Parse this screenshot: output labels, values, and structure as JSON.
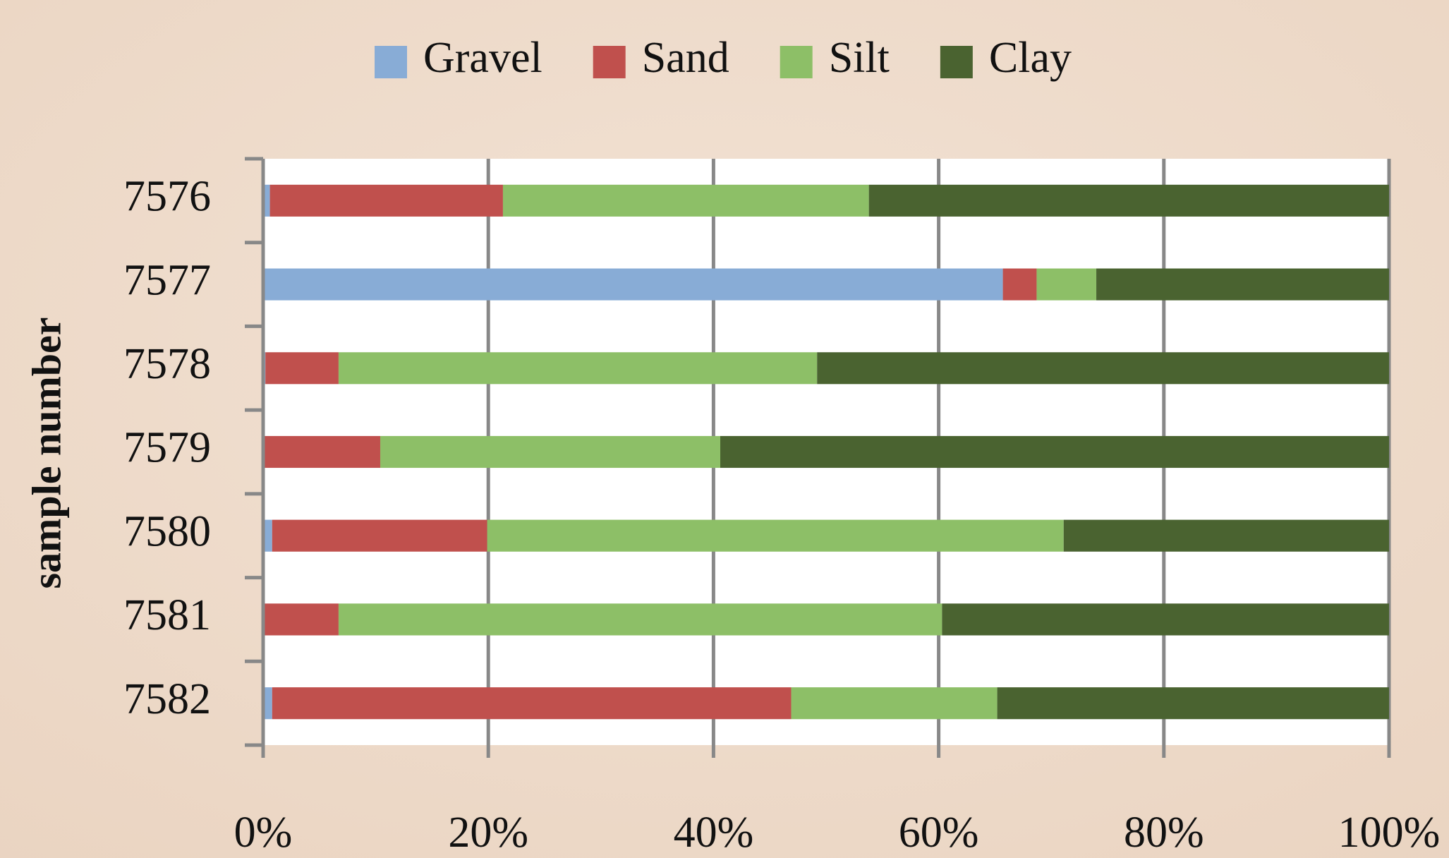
{
  "chart_data": {
    "type": "stacked-barh",
    "y_label": "sample number",
    "categories": [
      "7576",
      "7577",
      "7578",
      "7579",
      "7580",
      "7581",
      "7582"
    ],
    "series": [
      {
        "name": "Gravel",
        "color": "#88acd6",
        "values": [
          0.6,
          65.7,
          0.2,
          0,
          0.8,
          0,
          0.8
        ]
      },
      {
        "name": "Sand",
        "color": "#c0504d",
        "values": [
          20.7,
          3.0,
          6.5,
          10.4,
          19.1,
          6.7,
          46.1
        ]
      },
      {
        "name": "Silt",
        "color": "#8dbf67",
        "values": [
          32.5,
          5.3,
          42.5,
          30.2,
          51.2,
          53.6,
          18.3
        ]
      },
      {
        "name": "Clay",
        "color": "#4a6330",
        "values": [
          46.2,
          26.0,
          50.8,
          59.4,
          28.9,
          39.7,
          34.8
        ]
      }
    ],
    "xlim": [
      0,
      100
    ],
    "xticks": [
      {
        "value": 0,
        "label": "0%"
      },
      {
        "value": 20,
        "label": "20%"
      },
      {
        "value": 40,
        "label": "40%"
      },
      {
        "value": 60,
        "label": "60%"
      },
      {
        "value": 80,
        "label": "80%"
      },
      {
        "value": 100,
        "label": "100%"
      }
    ],
    "grid": true,
    "legend": "top"
  }
}
